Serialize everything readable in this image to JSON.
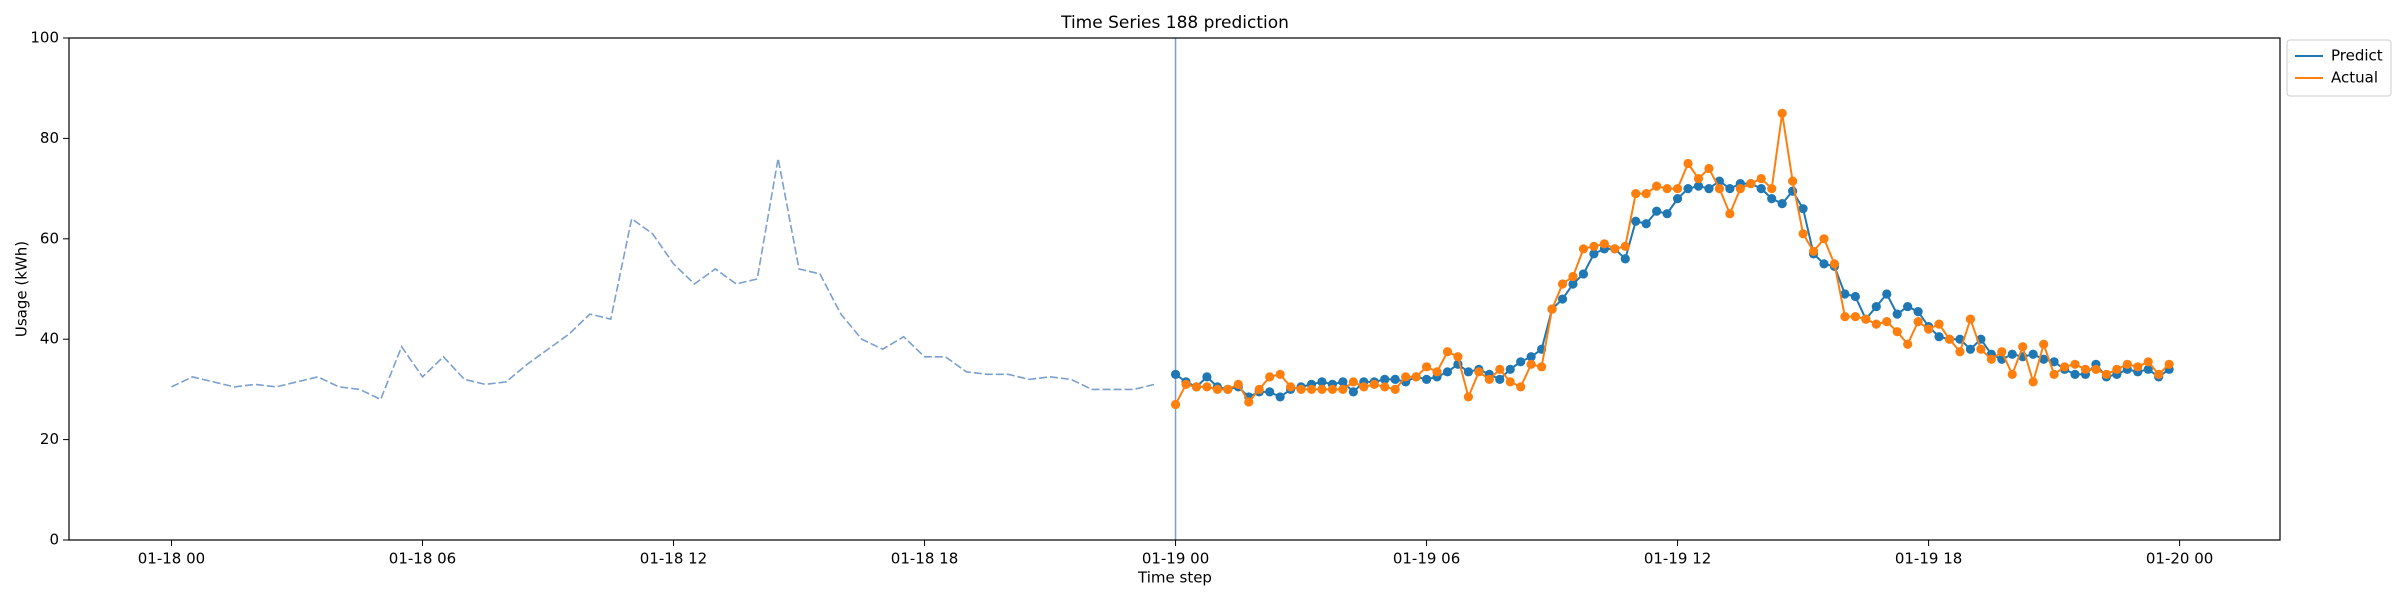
{
  "chart_data": {
    "type": "line",
    "title": "Time Series 188 prediction",
    "xlabel": "Time step",
    "ylabel": "Usage (kWh)",
    "xlim": [
      -2.45,
      50.4
    ],
    "xticks": [
      {
        "value": 0,
        "label": "01-18 00"
      },
      {
        "value": 6,
        "label": "01-18 06"
      },
      {
        "value": 12,
        "label": "01-18 12"
      },
      {
        "value": 18,
        "label": "01-18 18"
      },
      {
        "value": 24,
        "label": "01-19 00"
      },
      {
        "value": 30,
        "label": "01-19 06"
      },
      {
        "value": 36,
        "label": "01-19 12"
      },
      {
        "value": 42,
        "label": "01-19 18"
      },
      {
        "value": 48,
        "label": "01-20 00"
      }
    ],
    "ylim": [
      0,
      100
    ],
    "yticks": [
      0,
      20,
      40,
      60,
      80,
      100
    ],
    "grid": false,
    "legend": "upper right outside",
    "vline": 24,
    "vline_color": "#7b9fcf",
    "history": {
      "color": "#7b9fcf",
      "dashed": true,
      "x": [
        0,
        0.5,
        1,
        1.5,
        2,
        2.5,
        3,
        3.5,
        4,
        4.5,
        5,
        5.5,
        6,
        6.5,
        7,
        7.5,
        8,
        8.5,
        9,
        9.5,
        10,
        10.5,
        11,
        11.5,
        12,
        12.5,
        13,
        13.5,
        14,
        14.5,
        15,
        15.5,
        16,
        16.5,
        17,
        17.5,
        18,
        18.5,
        19,
        19.5,
        20,
        20.5,
        21,
        21.5,
        22,
        22.5,
        23,
        23.5
      ],
      "values": [
        30.5,
        32.5,
        31.5,
        30.5,
        31,
        30.5,
        31.5,
        32.5,
        30.5,
        30,
        28,
        38.5,
        32.5,
        36.5,
        32,
        31,
        31.5,
        35,
        38,
        41,
        45,
        44,
        64,
        61,
        55,
        51,
        54,
        51,
        52,
        76,
        54,
        53,
        45,
        40,
        38,
        40.5,
        36.5,
        36.5,
        33.5,
        33,
        33,
        32,
        32.5,
        32,
        30,
        30,
        30,
        31
      ]
    },
    "x": [
      24,
      24.25,
      24.5,
      24.75,
      25,
      25.25,
      25.5,
      25.75,
      26,
      26.25,
      26.5,
      26.75,
      27,
      27.25,
      27.5,
      27.75,
      28,
      28.25,
      28.5,
      28.75,
      29,
      29.25,
      29.5,
      29.75,
      30,
      30.25,
      30.5,
      30.75,
      31,
      31.25,
      31.5,
      31.75,
      32,
      32.25,
      32.5,
      32.75,
      33,
      33.25,
      33.5,
      33.75,
      34,
      34.25,
      34.5,
      34.75,
      35,
      35.25,
      35.5,
      35.75,
      36,
      36.25,
      36.5,
      36.75,
      37,
      37.25,
      37.5,
      37.75,
      38,
      38.25,
      38.5,
      38.75,
      39,
      39.25,
      39.5,
      39.75,
      40,
      40.25,
      40.5,
      40.75,
      41,
      41.25,
      41.5,
      41.75,
      42,
      42.25,
      42.5,
      42.75,
      43,
      43.25,
      43.5,
      43.75,
      44,
      44.25,
      44.5,
      44.75,
      45,
      45.25,
      45.5,
      45.75,
      46,
      46.25,
      46.5,
      46.75,
      47,
      47.25,
      47.5,
      47.75
    ],
    "series": [
      {
        "name": "Predict",
        "color": "#1f77b4",
        "values": [
          33,
          31.5,
          30.5,
          32.5,
          30.5,
          30,
          30.5,
          28.5,
          29.5,
          29.5,
          28.5,
          30,
          30.5,
          31,
          31.5,
          31,
          31.5,
          29.5,
          31.5,
          31.5,
          32,
          32,
          31.5,
          32.5,
          32,
          32.5,
          33.5,
          35,
          33.5,
          34,
          33,
          32,
          34,
          35.5,
          36.5,
          38,
          46,
          48,
          51,
          53,
          57,
          58,
          58,
          56,
          63.5,
          63,
          65.5,
          65,
          68,
          70,
          70.5,
          70,
          71.5,
          70,
          71,
          71,
          70,
          68,
          67,
          69.5,
          66,
          57,
          55,
          54.5,
          49,
          48.5,
          44,
          46.5,
          49,
          45,
          46.5,
          45.5,
          42.5,
          40.5,
          40,
          40,
          38,
          40,
          37,
          36,
          37,
          36.5,
          37,
          36,
          35.5,
          34,
          33,
          33,
          35,
          32.5,
          33,
          34,
          33.5,
          34,
          32.5,
          34
        ]
      },
      {
        "name": "Actual",
        "color": "#ff7f0e",
        "values": [
          27,
          31,
          30.5,
          30.5,
          30,
          30,
          31,
          27.5,
          30,
          32.5,
          33,
          30.5,
          30,
          30,
          30,
          30,
          30,
          31.5,
          30.5,
          31,
          30.5,
          30,
          32.5,
          32.5,
          34.5,
          33.5,
          37.5,
          36.5,
          28.5,
          33.5,
          32,
          34,
          31.5,
          30.5,
          35,
          34.5,
          46,
          51,
          52.5,
          58,
          58.5,
          59,
          58,
          58.5,
          69,
          69,
          70.5,
          70,
          70,
          75,
          72,
          74,
          70,
          65,
          70,
          71,
          72,
          70,
          85,
          71.5,
          61,
          57.5,
          60,
          55,
          44.5,
          44.5,
          44,
          43,
          43.5,
          41.5,
          39,
          43.5,
          42,
          43,
          40,
          37.5,
          44,
          38,
          36,
          37.5,
          33,
          38.5,
          31.5,
          39,
          33,
          34.5,
          35,
          34,
          34,
          33,
          34,
          35,
          34.5,
          35.5,
          33,
          35
        ]
      }
    ]
  }
}
